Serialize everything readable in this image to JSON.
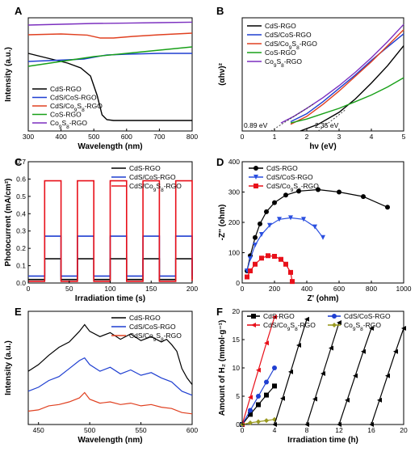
{
  "chart_data": [
    {
      "panel": "A",
      "type": "line",
      "xlabel": "Wavelength (nm)",
      "ylabel": "Intensity (a.u.)",
      "xlim": [
        300,
        800
      ],
      "x_ticks": [
        "300",
        "400",
        "500",
        "600",
        "700",
        "800"
      ],
      "legend_position": "bottom-left",
      "series": [
        {
          "name": "CdS-RGO",
          "color": "#000000",
          "x": [
            300,
            340,
            380,
            420,
            460,
            490,
            510,
            525,
            540,
            560,
            600,
            700,
            800
          ],
          "y": [
            0.78,
            0.76,
            0.74,
            0.72,
            0.69,
            0.64,
            0.52,
            0.4,
            0.37,
            0.365,
            0.365,
            0.365,
            0.365
          ]
        },
        {
          "name": "CdS/CoS-RGO",
          "color": "#1f3fd1",
          "x": [
            300,
            360,
            420,
            470,
            510,
            540,
            600,
            700,
            800
          ],
          "y": [
            0.73,
            0.735,
            0.74,
            0.745,
            0.76,
            0.77,
            0.775,
            0.78,
            0.78
          ]
        },
        {
          "name": "CdS/Co9S8-RGO",
          "color": "#e04020",
          "x": [
            300,
            400,
            480,
            520,
            560,
            620,
            700,
            800
          ],
          "y": [
            0.895,
            0.9,
            0.893,
            0.875,
            0.875,
            0.885,
            0.895,
            0.905
          ]
        },
        {
          "name": "CoS-RGO",
          "color": "#18a018",
          "x": [
            300,
            400,
            500,
            600,
            700,
            800
          ],
          "y": [
            0.7,
            0.73,
            0.76,
            0.78,
            0.8,
            0.82
          ]
        },
        {
          "name": "Co9S8-RGO",
          "color": "#7b2fbf",
          "x": [
            300,
            400,
            500,
            600,
            700,
            800
          ],
          "y": [
            0.955,
            0.96,
            0.965,
            0.967,
            0.97,
            0.973
          ]
        }
      ]
    },
    {
      "panel": "B",
      "type": "line",
      "xlabel": "hν (eV)",
      "ylabel": "(αhν)²",
      "xlim": [
        0,
        5
      ],
      "x_ticks": [
        "0",
        "1",
        "2",
        "3",
        "4",
        "5"
      ],
      "legend_position": "top-left",
      "annotations": [
        "0.89 eV",
        "2.35 eV"
      ],
      "series": [
        {
          "name": "CdS-RGO",
          "color": "#000000",
          "x": [
            1.8,
            2.35,
            3.0,
            3.5,
            4.0,
            4.5,
            5.0
          ],
          "y": [
            0.0,
            0.05,
            0.14,
            0.24,
            0.36,
            0.49,
            0.64
          ]
        },
        {
          "name": "CdS/CoS-RGO",
          "color": "#1f3fd1",
          "x": [
            1.5,
            2.0,
            2.5,
            3.0,
            3.5,
            4.0,
            4.5,
            5.0
          ],
          "y": [
            0.07,
            0.13,
            0.22,
            0.32,
            0.42,
            0.53,
            0.63,
            0.73
          ]
        },
        {
          "name": "CdS/Co9S8-RGO",
          "color": "#e04020",
          "x": [
            1.5,
            2.0,
            2.5,
            3.0,
            3.5,
            4.0,
            4.5,
            5.0
          ],
          "y": [
            0.05,
            0.11,
            0.2,
            0.3,
            0.41,
            0.52,
            0.64,
            0.76
          ]
        },
        {
          "name": "CoS-RGO",
          "color": "#18a018",
          "x": [
            1.5,
            2.0,
            2.5,
            3.0,
            3.5,
            4.0,
            4.5,
            5.0
          ],
          "y": [
            0.06,
            0.09,
            0.13,
            0.17,
            0.22,
            0.27,
            0.33,
            0.4
          ]
        },
        {
          "name": "Co9S8-RGO",
          "color": "#7b2fbf",
          "x": [
            1.2,
            1.6,
            2.0,
            2.5,
            3.0,
            3.5,
            4.0,
            4.5,
            5.0
          ],
          "y": [
            0.06,
            0.11,
            0.17,
            0.25,
            0.34,
            0.44,
            0.55,
            0.67,
            0.8
          ]
        }
      ]
    },
    {
      "panel": "C",
      "type": "line",
      "xlabel": "Irradiation time (s)",
      "ylabel": "Photocurrent (mA/cm²)",
      "xlim": [
        0,
        200
      ],
      "ylim": [
        0.0,
        0.7
      ],
      "x_ticks": [
        "0",
        "50",
        "100",
        "150",
        "200"
      ],
      "y_ticks": [
        "0.0",
        "0.1",
        "0.2",
        "0.3",
        "0.4",
        "0.5",
        "0.6",
        "0.7"
      ],
      "light_on_intervals": [
        [
          20,
          40
        ],
        [
          60,
          80
        ],
        [
          100,
          120
        ],
        [
          140,
          160
        ],
        [
          180,
          200
        ]
      ],
      "legend_position": "top-right",
      "series": [
        {
          "name": "CdS-RGO",
          "color": "#000000",
          "on": 0.14,
          "off": 0.02
        },
        {
          "name": "CdS/CoS-RGO",
          "color": "#1f3fd1",
          "on": 0.27,
          "off": 0.04
        },
        {
          "name": "CdS/Co9S8-RGO",
          "color": "#e8101a",
          "on": 0.59,
          "off": 0.01
        }
      ]
    },
    {
      "panel": "D",
      "type": "scatter",
      "xlabel": "Z' (ohm)",
      "ylabel": "-Z'' (ohm)",
      "xlim": [
        0,
        1000
      ],
      "ylim": [
        0,
        400
      ],
      "x_ticks": [
        "0",
        "200",
        "400",
        "600",
        "800",
        "1000"
      ],
      "y_ticks": [
        "0",
        "100",
        "200",
        "300",
        "400"
      ],
      "legend_position": "top-left",
      "series": [
        {
          "name": "CdS-RGO",
          "color": "#000000",
          "marker": "circle",
          "x": [
            30,
            50,
            80,
            110,
            150,
            200,
            270,
            350,
            470,
            600,
            750,
            900
          ],
          "y": [
            40,
            90,
            150,
            195,
            235,
            265,
            290,
            303,
            308,
            300,
            285,
            250
          ]
        },
        {
          "name": "CdS/CoS-RGO",
          "color": "#2a4fe0",
          "marker": "triangle-down",
          "x": [
            30,
            50,
            80,
            120,
            170,
            230,
            300,
            380,
            450,
            500
          ],
          "y": [
            40,
            80,
            125,
            160,
            190,
            210,
            215,
            210,
            185,
            150
          ]
        },
        {
          "name": "CdS/Co9S8-RGO",
          "color": "#e8101a",
          "marker": "square",
          "x": [
            30,
            50,
            80,
            120,
            160,
            200,
            240,
            270,
            300,
            310
          ],
          "y": [
            20,
            40,
            62,
            82,
            90,
            88,
            78,
            62,
            35,
            5
          ]
        }
      ]
    },
    {
      "panel": "E",
      "type": "line",
      "xlabel": "Wavelength (nm)",
      "ylabel": "Intensity (a.u.)",
      "xlim": [
        440,
        600
      ],
      "x_ticks": [
        "450",
        "500",
        "550",
        "600"
      ],
      "legend_position": "top-right",
      "series": [
        {
          "name": "CdS-RGO",
          "color": "#000000",
          "x": [
            440,
            450,
            460,
            470,
            480,
            490,
            495,
            500,
            510,
            520,
            530,
            540,
            550,
            560,
            570,
            575,
            580,
            585,
            590,
            595,
            600
          ],
          "y": [
            0.4,
            0.45,
            0.52,
            0.58,
            0.62,
            0.7,
            0.75,
            0.7,
            0.66,
            0.69,
            0.64,
            0.68,
            0.63,
            0.66,
            0.62,
            0.64,
            0.6,
            0.55,
            0.42,
            0.35,
            0.3
          ]
        },
        {
          "name": "CdS/CoS-RGO",
          "color": "#1f3fd1",
          "x": [
            440,
            450,
            460,
            470,
            480,
            490,
            495,
            500,
            510,
            520,
            530,
            540,
            550,
            560,
            570,
            580,
            590,
            600
          ],
          "y": [
            0.25,
            0.28,
            0.33,
            0.36,
            0.42,
            0.48,
            0.5,
            0.45,
            0.4,
            0.43,
            0.38,
            0.41,
            0.37,
            0.39,
            0.35,
            0.32,
            0.25,
            0.22
          ]
        },
        {
          "name": "CdS/Co9S8-RGO",
          "color": "#e04020",
          "x": [
            440,
            450,
            460,
            470,
            480,
            490,
            495,
            500,
            510,
            520,
            530,
            540,
            550,
            560,
            570,
            580,
            590,
            600
          ],
          "y": [
            0.1,
            0.11,
            0.14,
            0.15,
            0.17,
            0.2,
            0.24,
            0.19,
            0.16,
            0.17,
            0.15,
            0.16,
            0.14,
            0.15,
            0.13,
            0.12,
            0.09,
            0.08
          ]
        }
      ]
    },
    {
      "panel": "F",
      "type": "line",
      "xlabel": "Irradiation time (h)",
      "ylabel": "Amount of H₂ (mmol·g⁻¹)",
      "xlim": [
        0,
        20
      ],
      "ylim": [
        0,
        20
      ],
      "x_ticks": [
        "0",
        "4",
        "8",
        "12",
        "16",
        "20"
      ],
      "y_ticks": [
        "0",
        "5",
        "10",
        "15",
        "20"
      ],
      "legend_position": "top",
      "series": [
        {
          "name": "CdS-RGO",
          "color": "#000000",
          "marker": "square",
          "x": [
            0,
            1,
            2,
            3,
            4
          ],
          "y": [
            0,
            1.8,
            3.5,
            5.2,
            6.8
          ]
        },
        {
          "name": "CdS/CoS-RGO",
          "color": "#1f3fd1",
          "marker": "circle",
          "x": [
            0,
            1,
            2,
            3,
            4
          ],
          "y": [
            0,
            2.5,
            5,
            7.5,
            10
          ]
        },
        {
          "name": "CdS/Co9S8-RGO",
          "color": "#e8101a",
          "marker": "triangle-left",
          "x": [
            0,
            1,
            2,
            3,
            4
          ],
          "y": [
            0,
            4.8,
            9.6,
            14.4,
            19
          ]
        },
        {
          "name": "Co9S8-RGO",
          "color": "#9a9a20",
          "marker": "diamond",
          "x": [
            0,
            1,
            2,
            3,
            4
          ],
          "y": [
            0,
            0.3,
            0.5,
            0.7,
            0.9
          ]
        },
        {
          "name": "",
          "color": "#000000",
          "marker": "triangle-left",
          "x": [
            4,
            5,
            6,
            7,
            8
          ],
          "y": [
            0,
            4.6,
            9.3,
            14,
            18.6
          ]
        },
        {
          "name": "",
          "color": "#000000",
          "marker": "triangle-left",
          "x": [
            8,
            9,
            10,
            11,
            12
          ],
          "y": [
            0,
            4.5,
            9,
            13.5,
            18
          ]
        },
        {
          "name": "",
          "color": "#000000",
          "marker": "triangle-left",
          "x": [
            12,
            13,
            14,
            15,
            16
          ],
          "y": [
            0,
            4.3,
            8.6,
            12.9,
            17
          ]
        },
        {
          "name": "",
          "color": "#000000",
          "marker": "triangle-left",
          "x": [
            16,
            17,
            18,
            19,
            20
          ],
          "y": [
            0,
            4.3,
            8.6,
            12.9,
            17
          ]
        }
      ]
    }
  ]
}
